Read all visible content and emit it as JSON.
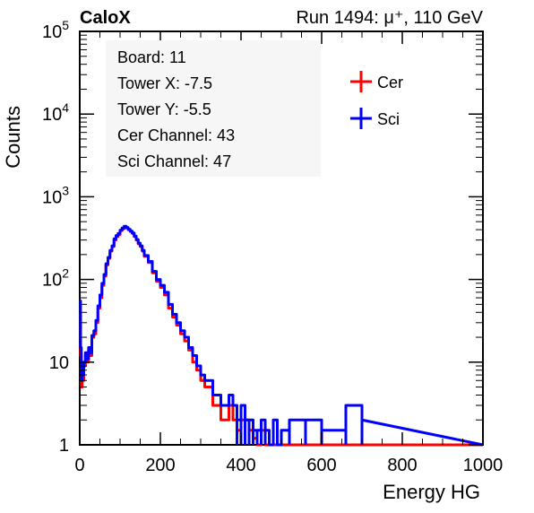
{
  "chart_data": {
    "type": "line",
    "title_left": "CaloX",
    "title_right": "Run 1494:   μ⁺, 110 GeV",
    "xlabel": "Energy HG",
    "ylabel": "Counts",
    "xlim": [
      0,
      1000
    ],
    "ylim": [
      1,
      100000
    ],
    "yscale": "log",
    "xticks": [
      0,
      200,
      400,
      600,
      800,
      1000
    ],
    "xtick_labels": [
      "0",
      "200",
      "400",
      "600",
      "800",
      "1000"
    ],
    "yticks": [
      1,
      10,
      100,
      1000,
      10000,
      100000
    ],
    "ytick_labels": [
      {
        "base": "1",
        "exp": ""
      },
      {
        "base": "10",
        "exp": ""
      },
      {
        "base": "10",
        "exp": "2"
      },
      {
        "base": "10",
        "exp": "3"
      },
      {
        "base": "10",
        "exp": "4"
      },
      {
        "base": "10",
        "exp": "5"
      }
    ],
    "info_box": [
      "Board: 11",
      "Tower X: -7.5",
      "Tower Y: -5.5",
      "Cer Channel: 43",
      "Sci Channel: 47"
    ],
    "legend_position": "top-right",
    "series": [
      {
        "name": "Cer",
        "color": "#ff0000",
        "x": [
          0,
          2,
          4,
          6,
          8,
          10,
          14,
          18,
          22,
          26,
          30,
          35,
          40,
          45,
          50,
          55,
          60,
          65,
          70,
          75,
          80,
          85,
          90,
          95,
          100,
          105,
          110,
          115,
          120,
          125,
          130,
          135,
          140,
          145,
          150,
          155,
          160,
          170,
          180,
          190,
          200,
          210,
          220,
          230,
          240,
          250,
          260,
          270,
          280,
          290,
          300,
          310,
          320,
          330,
          340,
          350,
          360,
          370,
          380,
          390,
          400,
          410,
          420,
          430,
          440,
          450,
          460,
          470,
          480,
          490,
          500,
          520,
          560,
          600,
          660,
          700
        ],
        "y": [
          40,
          12,
          5,
          8,
          6,
          9,
          12,
          10,
          14,
          12,
          20,
          22,
          30,
          45,
          60,
          85,
          110,
          150,
          180,
          220,
          250,
          300,
          330,
          350,
          390,
          410,
          430,
          420,
          400,
          380,
          360,
          330,
          300,
          270,
          250,
          220,
          190,
          160,
          120,
          95,
          80,
          65,
          45,
          35,
          28,
          22,
          18,
          14,
          10,
          8,
          6,
          5,
          5,
          3,
          3,
          2,
          2,
          3,
          2,
          1.5,
          2,
          2,
          1.5,
          1.2,
          1,
          1.5,
          1,
          1,
          1,
          1,
          1,
          1,
          1,
          1,
          1,
          1
        ]
      },
      {
        "name": "Sci",
        "color": "#0000ff",
        "x": [
          0,
          2,
          4,
          6,
          8,
          10,
          14,
          18,
          22,
          26,
          30,
          35,
          40,
          45,
          50,
          55,
          60,
          65,
          70,
          75,
          80,
          85,
          90,
          95,
          100,
          105,
          110,
          115,
          120,
          125,
          130,
          135,
          140,
          145,
          150,
          155,
          160,
          170,
          180,
          190,
          200,
          210,
          220,
          230,
          240,
          250,
          260,
          270,
          280,
          290,
          300,
          310,
          320,
          330,
          340,
          350,
          360,
          370,
          380,
          390,
          400,
          410,
          420,
          430,
          440,
          450,
          460,
          470,
          480,
          490,
          500,
          520,
          560,
          600,
          660,
          700
        ],
        "y": [
          55,
          15,
          6,
          9,
          7,
          10,
          13,
          11,
          15,
          13,
          21,
          24,
          32,
          48,
          65,
          90,
          115,
          155,
          185,
          225,
          255,
          310,
          340,
          360,
          395,
          420,
          440,
          425,
          405,
          385,
          365,
          335,
          305,
          275,
          255,
          225,
          195,
          165,
          125,
          100,
          85,
          70,
          50,
          38,
          30,
          24,
          20,
          15,
          12,
          9,
          7,
          6,
          6,
          4,
          4,
          3,
          3,
          4,
          3,
          2,
          3,
          2,
          2,
          1.5,
          1.5,
          2,
          1.5,
          1,
          2,
          1,
          1.5,
          2,
          2,
          1.5,
          3,
          2
        ]
      }
    ]
  }
}
